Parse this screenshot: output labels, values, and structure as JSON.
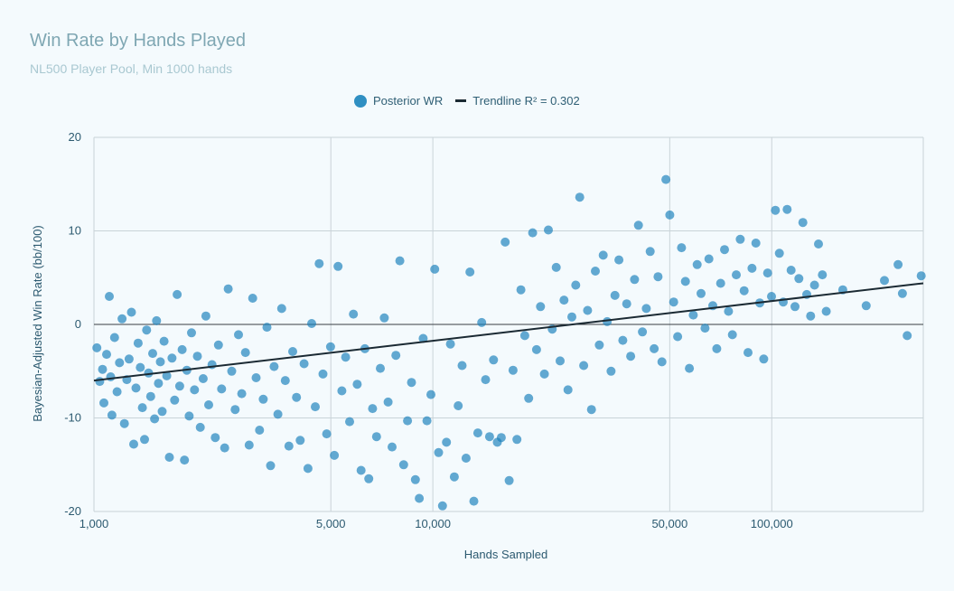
{
  "chart_data": {
    "type": "scatter",
    "title": "Win Rate by Hands Played",
    "subtitle": "NL500 Player Pool, Min 1000 hands",
    "xlabel": "Hands Sampled",
    "ylabel": "Bayesian-Adjusted Win Rate (bb/100)",
    "x_scale": "log",
    "xlim": [
      1000,
      280000
    ],
    "ylim": [
      -20,
      20
    ],
    "x_ticks": [
      1000,
      5000,
      10000,
      50000,
      100000
    ],
    "x_tick_labels": [
      "1,000",
      "5,000",
      "10,000",
      "50,000",
      "100,000"
    ],
    "y_ticks": [
      -20,
      -10,
      0,
      10,
      20
    ],
    "y_tick_labels": [
      "-20",
      "-10",
      "0",
      "10",
      "20"
    ],
    "grid": true,
    "legend_position": "top-center",
    "series": [
      {
        "name": "Posterior WR",
        "type": "scatter",
        "color": "#1a80bb",
        "points": [
          [
            1020,
            -2.5
          ],
          [
            1040,
            -6.1
          ],
          [
            1060,
            -4.8
          ],
          [
            1070,
            -8.4
          ],
          [
            1090,
            -3.2
          ],
          [
            1110,
            3.0
          ],
          [
            1120,
            -5.6
          ],
          [
            1130,
            -9.7
          ],
          [
            1150,
            -1.4
          ],
          [
            1170,
            -7.2
          ],
          [
            1190,
            -4.1
          ],
          [
            1210,
            0.6
          ],
          [
            1230,
            -10.6
          ],
          [
            1250,
            -5.9
          ],
          [
            1270,
            -3.7
          ],
          [
            1290,
            1.3
          ],
          [
            1310,
            -12.8
          ],
          [
            1330,
            -6.8
          ],
          [
            1350,
            -2.0
          ],
          [
            1370,
            -4.6
          ],
          [
            1390,
            -8.9
          ],
          [
            1410,
            -12.3
          ],
          [
            1430,
            -0.6
          ],
          [
            1450,
            -5.2
          ],
          [
            1470,
            -7.7
          ],
          [
            1490,
            -3.1
          ],
          [
            1510,
            -10.1
          ],
          [
            1530,
            0.4
          ],
          [
            1550,
            -6.3
          ],
          [
            1570,
            -4.0
          ],
          [
            1590,
            -9.3
          ],
          [
            1610,
            -1.8
          ],
          [
            1640,
            -5.5
          ],
          [
            1670,
            -14.2
          ],
          [
            1700,
            -3.6
          ],
          [
            1730,
            -8.1
          ],
          [
            1760,
            3.2
          ],
          [
            1790,
            -6.6
          ],
          [
            1820,
            -2.7
          ],
          [
            1850,
            -14.5
          ],
          [
            1880,
            -4.9
          ],
          [
            1910,
            -9.8
          ],
          [
            1940,
            -0.9
          ],
          [
            1980,
            -7.0
          ],
          [
            2020,
            -3.4
          ],
          [
            2060,
            -11.0
          ],
          [
            2100,
            -5.8
          ],
          [
            2140,
            0.9
          ],
          [
            2180,
            -8.6
          ],
          [
            2230,
            -4.3
          ],
          [
            2280,
            -12.1
          ],
          [
            2330,
            -2.2
          ],
          [
            2380,
            -6.9
          ],
          [
            2430,
            -13.2
          ],
          [
            2490,
            3.8
          ],
          [
            2550,
            -5.0
          ],
          [
            2610,
            -9.1
          ],
          [
            2670,
            -1.1
          ],
          [
            2730,
            -7.4
          ],
          [
            2800,
            -3.0
          ],
          [
            2870,
            -12.9
          ],
          [
            2940,
            2.8
          ],
          [
            3010,
            -5.7
          ],
          [
            3080,
            -11.3
          ],
          [
            3160,
            -8.0
          ],
          [
            3240,
            -0.3
          ],
          [
            3320,
            -15.1
          ],
          [
            3400,
            -4.5
          ],
          [
            3490,
            -9.6
          ],
          [
            3580,
            1.7
          ],
          [
            3670,
            -6.0
          ],
          [
            3760,
            -13.0
          ],
          [
            3860,
            -2.9
          ],
          [
            3960,
            -7.8
          ],
          [
            4060,
            -12.4
          ],
          [
            4170,
            -4.2
          ],
          [
            4280,
            -15.4
          ],
          [
            4390,
            0.1
          ],
          [
            4500,
            -8.8
          ],
          [
            4620,
            6.5
          ],
          [
            4740,
            -5.3
          ],
          [
            4860,
            -11.7
          ],
          [
            4990,
            -2.4
          ],
          [
            5120,
            -14.0
          ],
          [
            5250,
            6.2
          ],
          [
            5390,
            -7.1
          ],
          [
            5530,
            -3.5
          ],
          [
            5680,
            -10.4
          ],
          [
            5830,
            1.1
          ],
          [
            5980,
            -6.4
          ],
          [
            6140,
            -15.6
          ],
          [
            6300,
            -2.6
          ],
          [
            6470,
            -16.5
          ],
          [
            6640,
            -9.0
          ],
          [
            6820,
            -12.0
          ],
          [
            7000,
            -4.7
          ],
          [
            7190,
            0.7
          ],
          [
            7380,
            -8.3
          ],
          [
            7580,
            -13.1
          ],
          [
            7780,
            -3.3
          ],
          [
            7990,
            6.8
          ],
          [
            8200,
            -15.0
          ],
          [
            8420,
            -10.3
          ],
          [
            8650,
            -6.2
          ],
          [
            8880,
            -16.6
          ],
          [
            9120,
            -18.6
          ],
          [
            9360,
            -1.5
          ],
          [
            9610,
            -10.3
          ],
          [
            9870,
            -7.5
          ],
          [
            10130,
            5.9
          ],
          [
            10400,
            -13.7
          ],
          [
            10680,
            -19.4
          ],
          [
            10970,
            -12.6
          ],
          [
            11270,
            -2.1
          ],
          [
            11570,
            -16.3
          ],
          [
            11880,
            -8.7
          ],
          [
            12200,
            -4.4
          ],
          [
            12530,
            -14.3
          ],
          [
            12870,
            5.6
          ],
          [
            13210,
            -18.9
          ],
          [
            13570,
            -11.6
          ],
          [
            13940,
            0.2
          ],
          [
            14310,
            -5.9
          ],
          [
            14700,
            -12.0
          ],
          [
            15100,
            -3.8
          ],
          [
            15500,
            -12.6
          ],
          [
            15920,
            -12.1
          ],
          [
            16350,
            8.8
          ],
          [
            16790,
            -16.7
          ],
          [
            17240,
            -4.9
          ],
          [
            17710,
            -12.3
          ],
          [
            18190,
            3.7
          ],
          [
            18680,
            -1.2
          ],
          [
            19180,
            -7.9
          ],
          [
            19700,
            9.8
          ],
          [
            20230,
            -2.7
          ],
          [
            20780,
            1.9
          ],
          [
            21340,
            -5.3
          ],
          [
            21920,
            10.1
          ],
          [
            22510,
            -0.5
          ],
          [
            23120,
            6.1
          ],
          [
            23740,
            -3.9
          ],
          [
            24380,
            2.6
          ],
          [
            25040,
            -7.0
          ],
          [
            25720,
            0.8
          ],
          [
            26410,
            4.2
          ],
          [
            27120,
            13.6
          ],
          [
            27860,
            -4.4
          ],
          [
            28610,
            1.5
          ],
          [
            29380,
            -9.1
          ],
          [
            30170,
            5.7
          ],
          [
            30990,
            -2.2
          ],
          [
            31820,
            7.4
          ],
          [
            32680,
            0.3
          ],
          [
            33560,
            -5.0
          ],
          [
            34470,
            3.1
          ],
          [
            35400,
            6.9
          ],
          [
            36350,
            -1.7
          ],
          [
            37330,
            2.2
          ],
          [
            38340,
            -3.4
          ],
          [
            39370,
            4.8
          ],
          [
            40430,
            10.6
          ],
          [
            41520,
            -0.8
          ],
          [
            42640,
            1.7
          ],
          [
            43790,
            7.8
          ],
          [
            44970,
            -2.6
          ],
          [
            46180,
            5.1
          ],
          [
            47430,
            -4.0
          ],
          [
            48710,
            15.5
          ],
          [
            50020,
            11.7
          ],
          [
            51370,
            2.4
          ],
          [
            52750,
            -1.3
          ],
          [
            54170,
            8.2
          ],
          [
            55630,
            4.6
          ],
          [
            57130,
            -4.7
          ],
          [
            58670,
            1.0
          ],
          [
            60250,
            6.4
          ],
          [
            61870,
            3.3
          ],
          [
            63540,
            -0.4
          ],
          [
            65250,
            7.0
          ],
          [
            67010,
            2.0
          ],
          [
            68820,
            -2.6
          ],
          [
            70670,
            4.4
          ],
          [
            72580,
            8.0
          ],
          [
            74530,
            1.4
          ],
          [
            76540,
            -1.1
          ],
          [
            78600,
            5.3
          ],
          [
            80720,
            9.1
          ],
          [
            82890,
            3.6
          ],
          [
            85120,
            -3.0
          ],
          [
            87420,
            6.0
          ],
          [
            89770,
            8.7
          ],
          [
            92190,
            2.3
          ],
          [
            94680,
            -3.7
          ],
          [
            97230,
            5.5
          ],
          [
            99850,
            3.0
          ],
          [
            102540,
            12.2
          ],
          [
            105300,
            7.6
          ],
          [
            108140,
            2.4
          ],
          [
            111050,
            12.3
          ],
          [
            114040,
            5.8
          ],
          [
            117110,
            1.9
          ],
          [
            120270,
            4.9
          ],
          [
            123510,
            10.9
          ],
          [
            126840,
            3.2
          ],
          [
            130250,
            0.9
          ],
          [
            133760,
            4.2
          ],
          [
            137360,
            8.6
          ],
          [
            141060,
            5.3
          ],
          [
            144860,
            1.4
          ],
          [
            162000,
            3.7
          ],
          [
            190000,
            2.0
          ],
          [
            215000,
            4.7
          ],
          [
            236000,
            6.4
          ],
          [
            243000,
            3.3
          ],
          [
            251000,
            -1.2
          ],
          [
            276000,
            5.2
          ]
        ]
      },
      {
        "name": "Trendline R² = 0.302",
        "type": "line",
        "color": "#1b2a33",
        "points": [
          [
            1000,
            -6.0
          ],
          [
            280000,
            4.4
          ]
        ]
      }
    ]
  },
  "legend": {
    "scatter_label": "Posterior WR",
    "trend_label": "Trendline R² = 0.302"
  }
}
